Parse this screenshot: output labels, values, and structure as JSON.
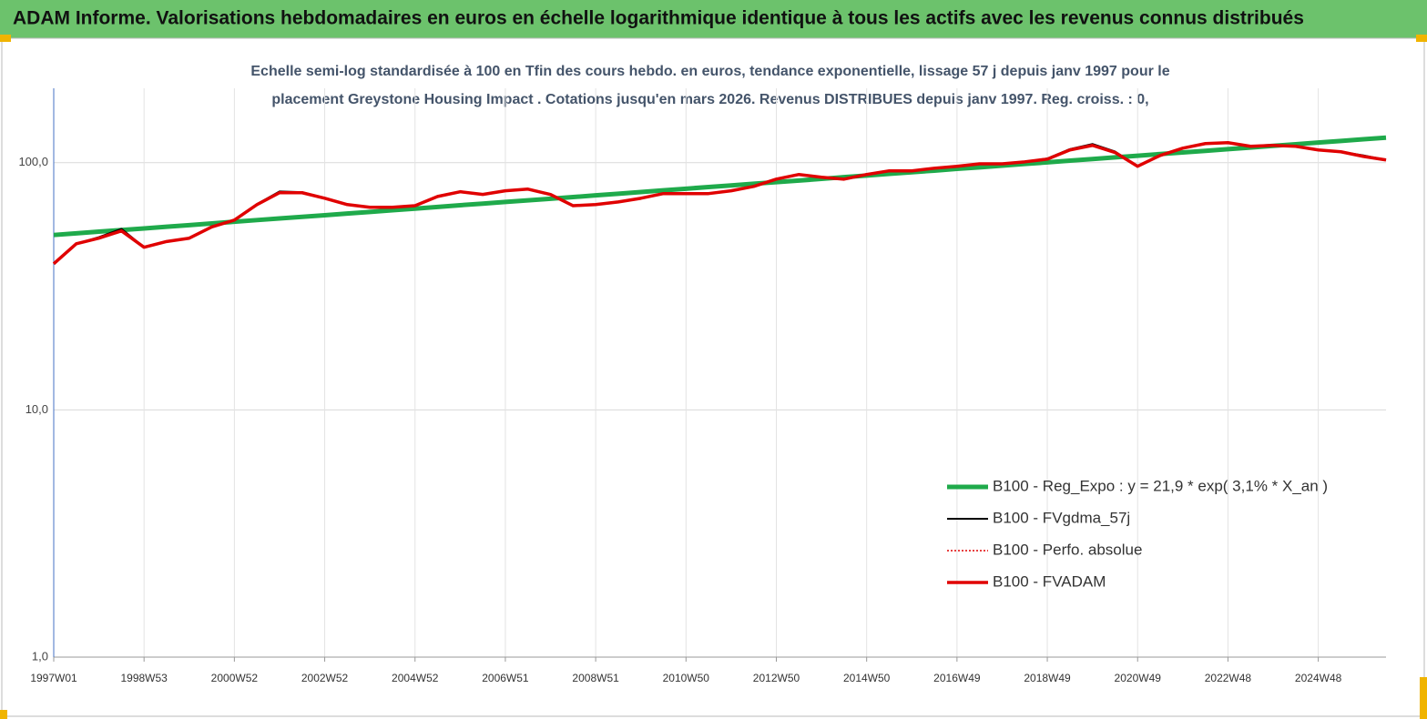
{
  "chart_data": {
    "type": "line",
    "title": "ADAM Informe. Valorisations hebdomadaires en euros en échelle logarithmique identique à tous les actifs avec les revenus connus distribués",
    "subtitle": [
      "Echelle semi-log standardisée à 100 en Tfin des cours hebdo. en euros, tendance exponentielle, lissage 57 j depuis janv 1997 pour le",
      "placement Greystone Housing Impact  . Cotations jusqu'en mars 2026. Revenus DISTRIBUES depuis janv 1997. Reg. croiss. : 0,"
    ],
    "categories": [
      "1997W01",
      null,
      null,
      null,
      "1998W53",
      null,
      null,
      null,
      "2000W52",
      null,
      null,
      null,
      "2002W52",
      null,
      null,
      null,
      "2004W52",
      null,
      null,
      null,
      "2006W51",
      null,
      null,
      null,
      "2008W51",
      null,
      null,
      null,
      "2010W50",
      null,
      null,
      null,
      "2012W50",
      null,
      null,
      null,
      "2014W50",
      null,
      null,
      null,
      "2016W49",
      null,
      null,
      null,
      "2018W49",
      null,
      null,
      null,
      "2020W49",
      null,
      null,
      null,
      "2022W48",
      null,
      null,
      null,
      "2024W48",
      null,
      null,
      null
    ],
    "y_scale": "log",
    "ylim": [
      1,
      200
    ],
    "yticks": [
      {
        "value": 1,
        "label": "1,0"
      },
      {
        "value": 10,
        "label": "10,0"
      },
      {
        "value": 100,
        "label": "100,0"
      }
    ],
    "grid": true,
    "series": [
      {
        "name": "B100 - Reg_Expo : y = 21,9 *  exp( 3,1% *  X_an )",
        "color": "#1faa4b",
        "line_width": 5,
        "dash": false,
        "values": [
          51,
          51.8,
          52.6,
          53.4,
          54.2,
          55.1,
          55.9,
          56.8,
          57.7,
          58.6,
          59.5,
          60.4,
          61.3,
          62.3,
          63.2,
          64.2,
          65.2,
          66.2,
          67.3,
          68.3,
          69.4,
          70.4,
          71.5,
          72.6,
          73.8,
          74.9,
          76.1,
          77.3,
          78.5,
          79.7,
          80.9,
          82.2,
          83.4,
          84.7,
          86.0,
          87.4,
          88.7,
          90.1,
          91.5,
          92.9,
          94.4,
          95.8,
          97.3,
          98.8,
          100.3,
          101.9,
          103.5,
          105.1,
          106.7,
          108.4,
          110.0,
          111.7,
          113.5,
          115.2,
          117.0,
          118.8,
          120.7,
          122.5,
          124.4,
          126.3
        ]
      },
      {
        "name": "B100 - FVgdma_57j",
        "color": "#000000",
        "line_width": 2,
        "dash": false,
        "values": [
          39,
          47,
          50,
          54,
          45.5,
          48,
          49.5,
          55,
          58.6,
          68,
          76.5,
          76,
          71.8,
          67.7,
          66,
          66,
          67,
          73,
          76.3,
          74.4,
          77,
          78.2,
          74.4,
          67,
          67.7,
          69.4,
          71.8,
          75,
          75,
          75,
          77,
          80.2,
          85.8,
          89.6,
          87.3,
          85.8,
          89.6,
          92.7,
          92.7,
          95,
          96.7,
          99,
          99,
          100.8,
          104,
          113.5,
          119,
          111,
          96.7,
          107,
          114.5,
          119.5,
          120.5,
          116.5,
          117.5,
          116.5,
          112.6,
          110.7,
          107,
          102.6
        ]
      },
      {
        "name": "B100 - Perfo. absolue",
        "color": "#e00000",
        "line_width": 1.5,
        "dash": true,
        "values": [
          39,
          47,
          49.5,
          53,
          45.5,
          48,
          49.5,
          55,
          58.6,
          67.7,
          75.6,
          75.6,
          71.8,
          67.7,
          66,
          66,
          67,
          73,
          76.3,
          74.4,
          77,
          78.2,
          74.4,
          67,
          67.7,
          69.4,
          71.8,
          75,
          75,
          75,
          77,
          80.2,
          85.8,
          89.6,
          87.3,
          85.8,
          89.6,
          92.7,
          92.7,
          95,
          96.7,
          99,
          99,
          100.8,
          103.4,
          112.6,
          117.5,
          110,
          96.7,
          107,
          114.5,
          119.5,
          120.5,
          116.5,
          117.5,
          116.5,
          112.6,
          110.7,
          106,
          102.6
        ]
      },
      {
        "name": "B100 - FVADAM",
        "color": "#e00000",
        "line_width": 3.5,
        "dash": false,
        "values": [
          39,
          47,
          49.5,
          53,
          45.5,
          48,
          49.5,
          55,
          58.6,
          67.7,
          75.6,
          75.6,
          71.8,
          67.7,
          66,
          66,
          67,
          73,
          76.3,
          74.4,
          77,
          78.2,
          74.4,
          67,
          67.7,
          69.4,
          71.8,
          75,
          75,
          75,
          77,
          80.2,
          85.8,
          89.6,
          87.3,
          85.8,
          89.6,
          92.7,
          92.7,
          95,
          96.7,
          99,
          99,
          100.8,
          103.4,
          112.6,
          117.5,
          110,
          96.7,
          107,
          114.5,
          119.5,
          120.5,
          116.5,
          117.5,
          116.5,
          112.6,
          110.7,
          106,
          102.6
        ]
      }
    ],
    "legend_position": "lower right"
  }
}
